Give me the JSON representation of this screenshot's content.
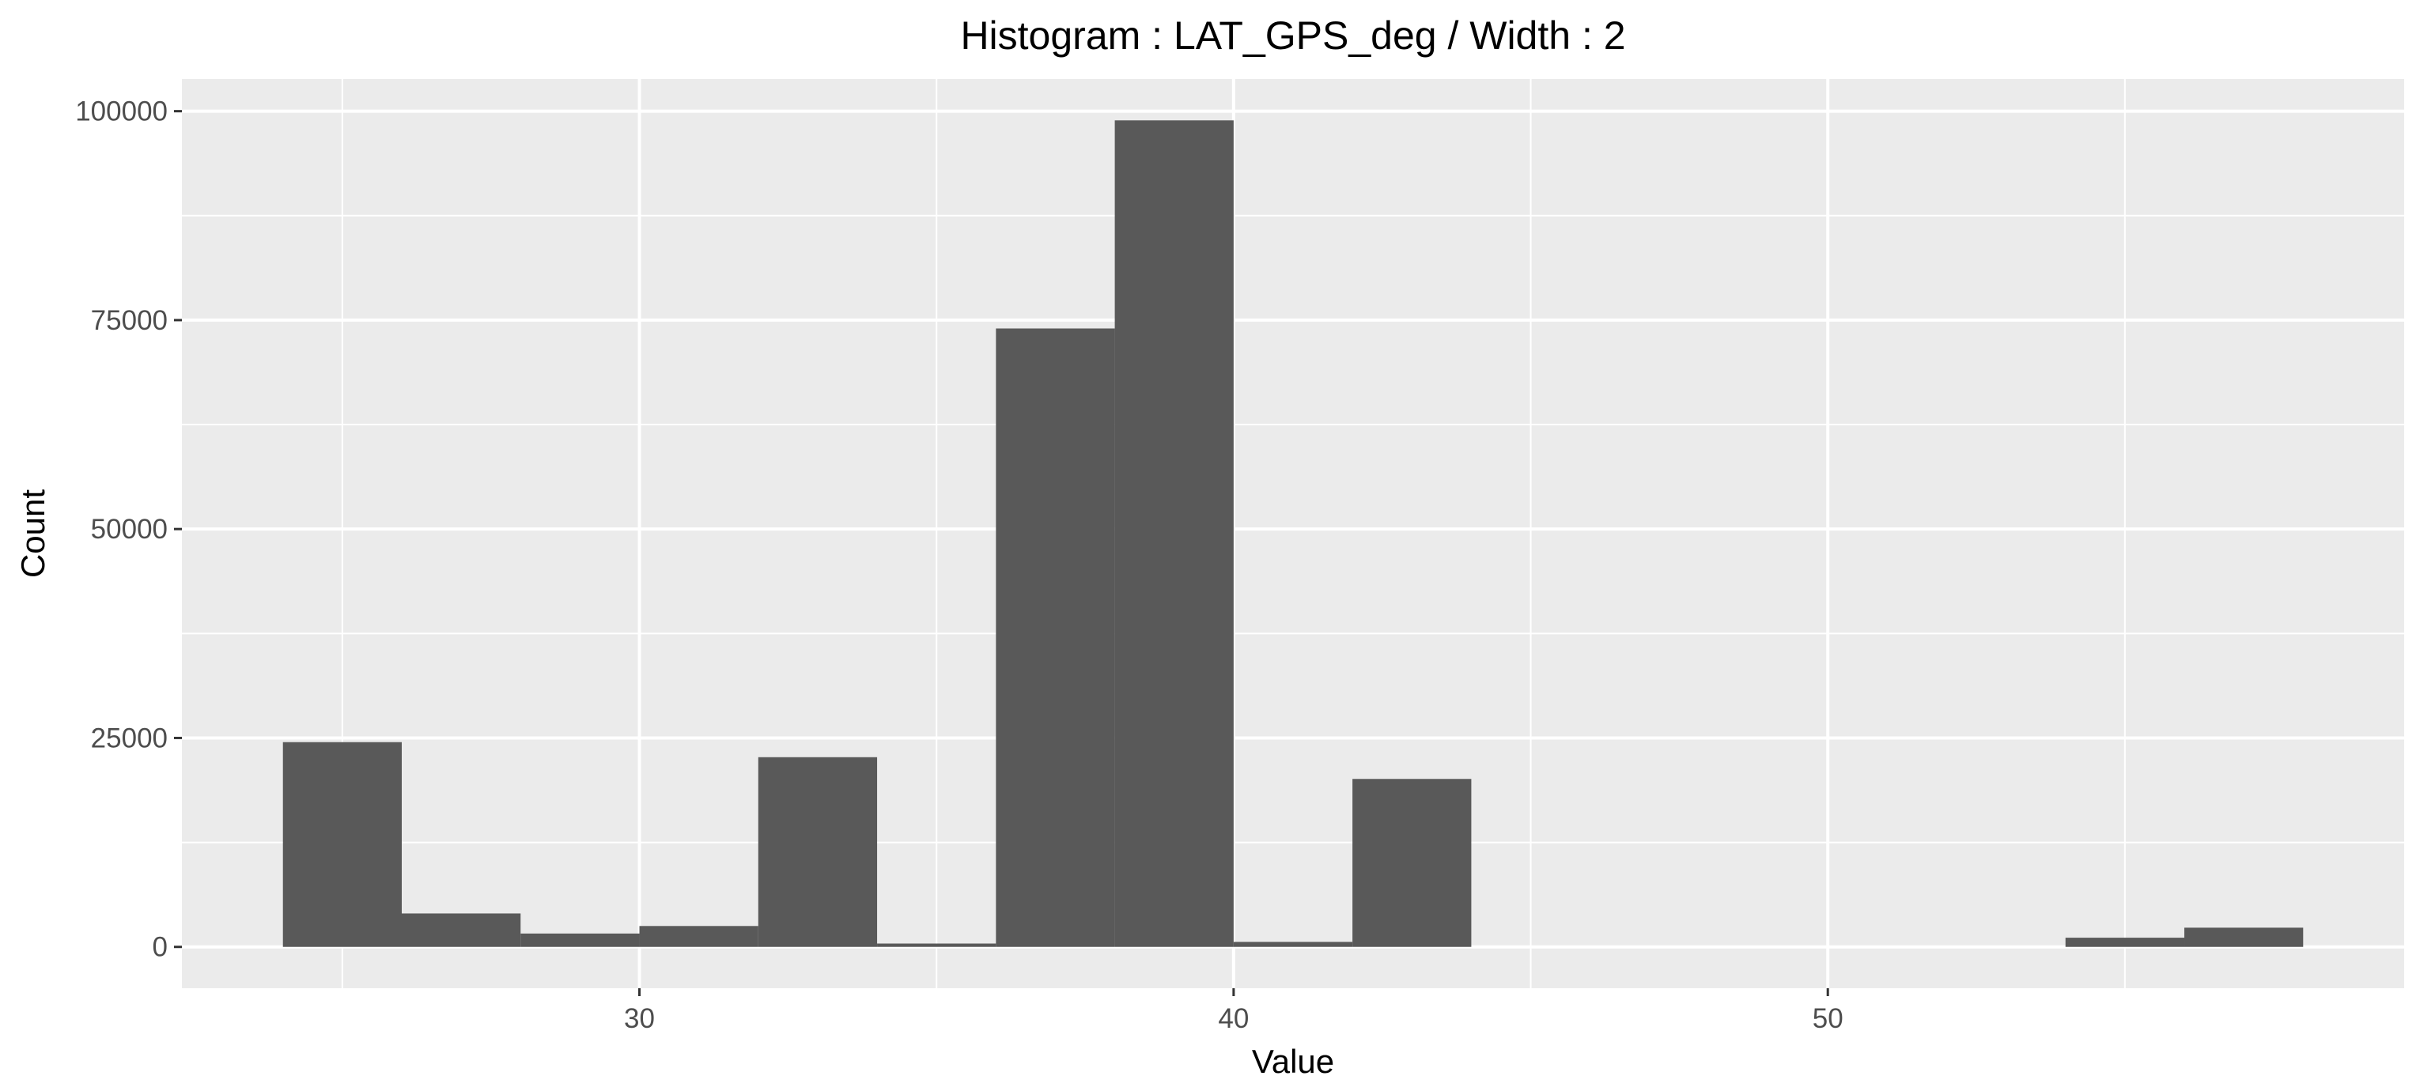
{
  "chart_data": {
    "type": "bar",
    "title": "Histogram : LAT_GPS_deg / Width : 2",
    "xlabel": "Value",
    "ylabel": "Count",
    "bin_width": 2,
    "bins": [
      {
        "x0": 24,
        "x1": 26,
        "count": 24500
      },
      {
        "x0": 26,
        "x1": 28,
        "count": 4000
      },
      {
        "x0": 28,
        "x1": 30,
        "count": 1600
      },
      {
        "x0": 30,
        "x1": 32,
        "count": 2500
      },
      {
        "x0": 32,
        "x1": 34,
        "count": 22700
      },
      {
        "x0": 34,
        "x1": 36,
        "count": 400
      },
      {
        "x0": 36,
        "x1": 38,
        "count": 74000
      },
      {
        "x0": 38,
        "x1": 40,
        "count": 98900
      },
      {
        "x0": 40,
        "x1": 42,
        "count": 600
      },
      {
        "x0": 42,
        "x1": 44,
        "count": 20100
      },
      {
        "x0": 44,
        "x1": 46,
        "count": 0
      },
      {
        "x0": 46,
        "x1": 48,
        "count": 0
      },
      {
        "x0": 48,
        "x1": 50,
        "count": 0
      },
      {
        "x0": 50,
        "x1": 52,
        "count": 0
      },
      {
        "x0": 52,
        "x1": 54,
        "count": 0
      },
      {
        "x0": 54,
        "x1": 56,
        "count": 1100
      },
      {
        "x0": 56,
        "x1": 58,
        "count": 2300
      }
    ],
    "xlim": [
      22.3,
      59.7
    ],
    "ylim": [
      -4945,
      103845
    ],
    "x_ticks": [
      30,
      40,
      50
    ],
    "x_minor_ticks": [
      25,
      35,
      45,
      55
    ],
    "y_ticks": [
      0,
      25000,
      50000,
      75000,
      100000
    ],
    "y_minor_ticks": [
      12500,
      37500,
      62500,
      87500
    ],
    "grid": true,
    "legend": "none",
    "colors": {
      "panel_background": "#ebebeb",
      "grid_line": "#ffffff",
      "bar_fill": "#595959",
      "tick_color": "#333333",
      "tick_label": "#4d4d4d"
    }
  }
}
